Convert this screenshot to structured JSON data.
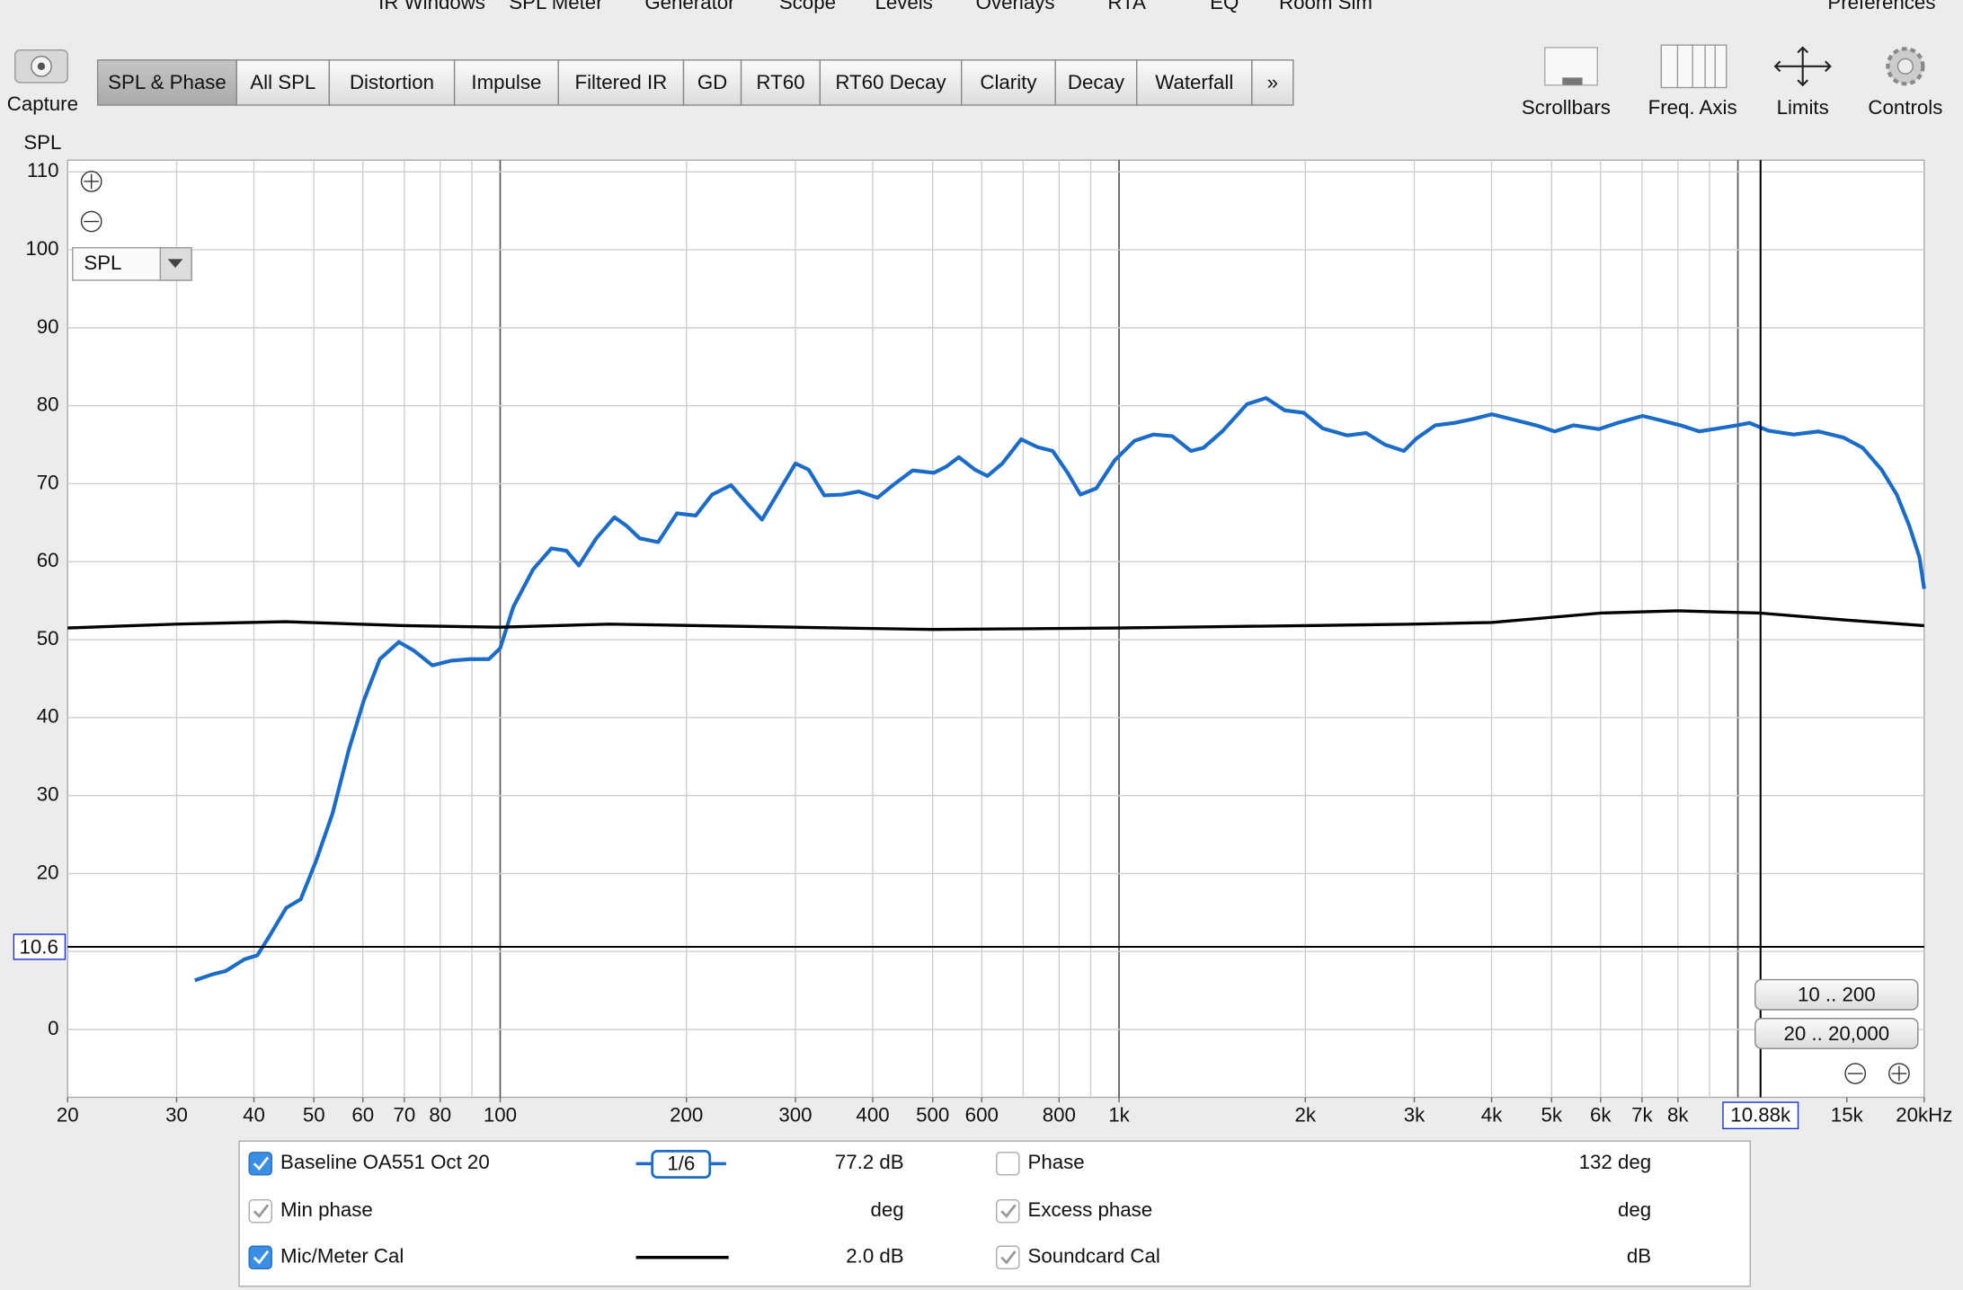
{
  "menu": [
    "IR Windows",
    "SPL Meter",
    "Generator",
    "Scope",
    "Levels",
    "Overlays",
    "RTA",
    "EQ",
    "Room Sim",
    "Preferences"
  ],
  "capture": "Capture",
  "tabs": [
    "SPL & Phase",
    "All SPL",
    "Distortion",
    "Impulse",
    "Filtered IR",
    "GD",
    "RT60",
    "RT60 Decay",
    "Clarity",
    "Decay",
    "Waterfall",
    "»"
  ],
  "tools": [
    "Scrollbars",
    "Freq. Axis",
    "Limits",
    "Controls"
  ],
  "controls": {
    "dropdown": "SPL",
    "zoom_buttons": [
      "10 .. 200",
      "20 .. 20,000"
    ]
  },
  "chart_data": {
    "type": "line",
    "y_label": "SPL",
    "xscale": "log",
    "grid": true,
    "xlim": [
      20,
      20000
    ],
    "ylim": [
      -8.7,
      111.5
    ],
    "xticks": [
      20,
      30,
      40,
      50,
      60,
      70,
      80,
      100,
      200,
      300,
      400,
      500,
      600,
      800,
      {
        "value": 1000,
        "label": "1k"
      },
      {
        "value": 2000,
        "label": "2k"
      },
      {
        "value": 3000,
        "label": "3k"
      },
      {
        "value": 4000,
        "label": "4k"
      },
      {
        "value": 5000,
        "label": "5k"
      },
      {
        "value": 6000,
        "label": "6k"
      },
      {
        "value": 7000,
        "label": "7k"
      },
      {
        "value": 8000,
        "label": "8k"
      },
      {
        "value": 15000,
        "label": "15k"
      },
      {
        "value": 20000,
        "label": "20kHz"
      }
    ],
    "xgrid": [
      30,
      40,
      50,
      60,
      70,
      80,
      90,
      100,
      200,
      300,
      400,
      500,
      600,
      700,
      800,
      900,
      1000,
      2000,
      3000,
      4000,
      5000,
      6000,
      7000,
      8000,
      9000,
      10000
    ],
    "yticks": [
      0,
      10,
      20,
      30,
      40,
      50,
      60,
      70,
      80,
      90,
      100,
      110
    ],
    "cursor": {
      "x": {
        "value": 10880,
        "label": "10.88k"
      },
      "y": 10.6
    },
    "series": [
      {
        "name": "Baseline OA551 Oct 20",
        "color": "#1a6cc8",
        "x": [
          32.1,
          34.4,
          36,
          38.6,
          40.5,
          42.4,
          45.1,
          47.6,
          50.4,
          53.6,
          56.9,
          60.2,
          63.9,
          68.6,
          72.5,
          77.7,
          83.4,
          89.4,
          95.9,
          100,
          105,
          113,
          121,
          128,
          134,
          143,
          153,
          160,
          168,
          180,
          193,
          207,
          220,
          236,
          251,
          265,
          280,
          300,
          315,
          334,
          357,
          380,
          407,
          431,
          464,
          502,
          526,
          551,
          585,
          613,
          648,
          695,
          738,
          781,
          826,
          866,
          919,
          984,
          1059,
          1136,
          1219,
          1307,
          1369,
          1468,
          1610,
          1727,
          1853,
          1988,
          2133,
          2338,
          2508,
          2690,
          2886,
          3024,
          3244,
          3480,
          3733,
          4004,
          4396,
          4716,
          5059,
          5427,
          5958,
          6391,
          7017,
          7527,
          8075,
          8662,
          9292,
          9968,
          10443,
          11203,
          12300,
          13500,
          14830,
          15910,
          17070,
          18060,
          18920,
          19650,
          20000
        ],
        "values": [
          6.3,
          7.1,
          7.5,
          9.0,
          9.5,
          12.0,
          15.6,
          16.7,
          21.6,
          27.7,
          35.8,
          42.2,
          47.5,
          49.7,
          48.6,
          46.7,
          47.3,
          47.5,
          47.5,
          48.9,
          54.2,
          59.0,
          61.7,
          61.4,
          59.5,
          63.0,
          65.7,
          64.6,
          63.0,
          62.5,
          66.2,
          65.9,
          68.6,
          69.8,
          67.4,
          65.4,
          68.6,
          72.6,
          71.8,
          68.5,
          68.6,
          69.0,
          68.2,
          69.8,
          71.7,
          71.4,
          72.2,
          73.4,
          71.8,
          71.0,
          72.6,
          75.7,
          74.7,
          74.2,
          71.4,
          68.6,
          69.4,
          73.0,
          75.5,
          76.3,
          76.1,
          74.2,
          74.6,
          76.7,
          80.2,
          81.0,
          79.4,
          79.1,
          77.1,
          76.2,
          76.5,
          75.0,
          74.2,
          75.8,
          77.5,
          77.8,
          78.3,
          78.9,
          78.1,
          77.5,
          76.7,
          77.5,
          77.0,
          77.8,
          78.7,
          78.1,
          77.5,
          76.7,
          77.1,
          77.5,
          77.8,
          76.8,
          76.3,
          76.7,
          75.9,
          74.6,
          71.8,
          68.6,
          64.6,
          60.6,
          56.5
        ]
      },
      {
        "name": "Mic/Meter Cal",
        "color": "#000000",
        "x": [
          20,
          30,
          45,
          70,
          100,
          150,
          300,
          500,
          1000,
          2000,
          3000,
          4000,
          6000,
          8000,
          10880,
          15000,
          20000
        ],
        "values": [
          51.5,
          52.0,
          52.3,
          51.8,
          51.6,
          52.0,
          51.6,
          51.3,
          51.5,
          51.8,
          52.0,
          52.2,
          53.4,
          53.7,
          53.4,
          52.5,
          51.8
        ]
      }
    ]
  },
  "legend_panel": {
    "rows": [
      {
        "smoothing": "1/6",
        "reading": "77.2 dB",
        "right_name": "Phase",
        "right_reading": "132 deg"
      },
      {
        "name": "Min phase",
        "reading": "deg",
        "right_name": "Excess phase",
        "right_reading": "deg"
      },
      {
        "reading": "2.0 dB",
        "right_name": "Soundcard Cal",
        "right_reading": "dB"
      }
    ]
  }
}
